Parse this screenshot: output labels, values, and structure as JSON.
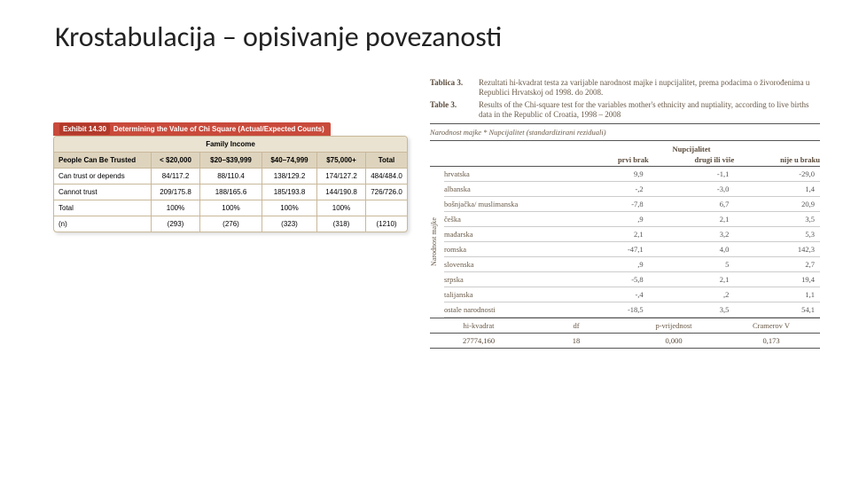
{
  "title": "Krostabulacija – opisivanje povezanosti",
  "exhibit": {
    "tab_label": "Exhibit 14.30",
    "tab_title": "Determining the Value of Chi Square (Actual/Expected Counts)",
    "super_header": "Family Income",
    "columns": [
      "People Can Be Trusted",
      "< $20,000",
      "$20–$39,999",
      "$40–74,999",
      "$75,000+",
      "Total"
    ],
    "rows": [
      [
        "Can trust or depends",
        "84/117.2",
        "88/110.4",
        "138/129.2",
        "174/127.2",
        "484/484.0"
      ],
      [
        "Cannot trust",
        "209/175.8",
        "188/165.6",
        "185/193.8",
        "144/190.8",
        "726/726.0"
      ],
      [
        "Total",
        "100%",
        "100%",
        "100%",
        "100%",
        ""
      ],
      [
        "(n)",
        "(293)",
        "(276)",
        "(323)",
        "(318)",
        "(1210)"
      ]
    ]
  },
  "tbl3": {
    "cap_hr_label": "Tablica 3.",
    "cap_hr_text": "Rezultati hi-kvadrat testa za varijable narodnost majke i nupcijalitet, prema podacima o živorođenima u Republici Hrvatskoj od 1998. do 2008.",
    "cap_en_label": "Table 3.",
    "cap_en_text": "Results of the Chi-square test for the variables mother's ethnicity and nuptiality, according to live births data in the Republic of Croatia, 1998 – 2008",
    "head_line": "Narodnost majke * Nupcijalitet (standardizirani reziduali)",
    "nup_title": "Nupcijalitet",
    "col_headers": [
      "prvi brak",
      "drugi ili više",
      "nije u braku"
    ],
    "vert_label": "Narodnost majke",
    "rows": [
      {
        "label": "hrvatska",
        "v": [
          "9,9",
          "-1,1",
          "-29,0"
        ]
      },
      {
        "label": "albanska",
        "v": [
          "-,2",
          "-3,0",
          "1,4"
        ]
      },
      {
        "label": "bošnjačka/ muslimanska",
        "v": [
          "-7,8",
          "6,7",
          "20,9"
        ]
      },
      {
        "label": "češka",
        "v": [
          ",9",
          "2,1",
          "3,5"
        ]
      },
      {
        "label": "mađarska",
        "v": [
          "2,1",
          "3,2",
          "5,3"
        ]
      },
      {
        "label": "romska",
        "v": [
          "-47,1",
          "4,0",
          "142,3"
        ]
      },
      {
        "label": "slovenska",
        "v": [
          ",9",
          "5",
          "2,7"
        ]
      },
      {
        "label": "srpska",
        "v": [
          "-5,8",
          "2,1",
          "19,4"
        ]
      },
      {
        "label": "talijanska",
        "v": [
          "-,4",
          ",2",
          "1,1"
        ]
      },
      {
        "label": "ostale narodnosti",
        "v": [
          "-18,5",
          "3,5",
          "54,1"
        ]
      }
    ],
    "foot_headers": [
      "hi-kvadrat",
      "df",
      "p-vrijednost",
      "Cramerov V"
    ],
    "foot_values": [
      "27774,160",
      "18",
      "0,000",
      "0,173"
    ]
  }
}
